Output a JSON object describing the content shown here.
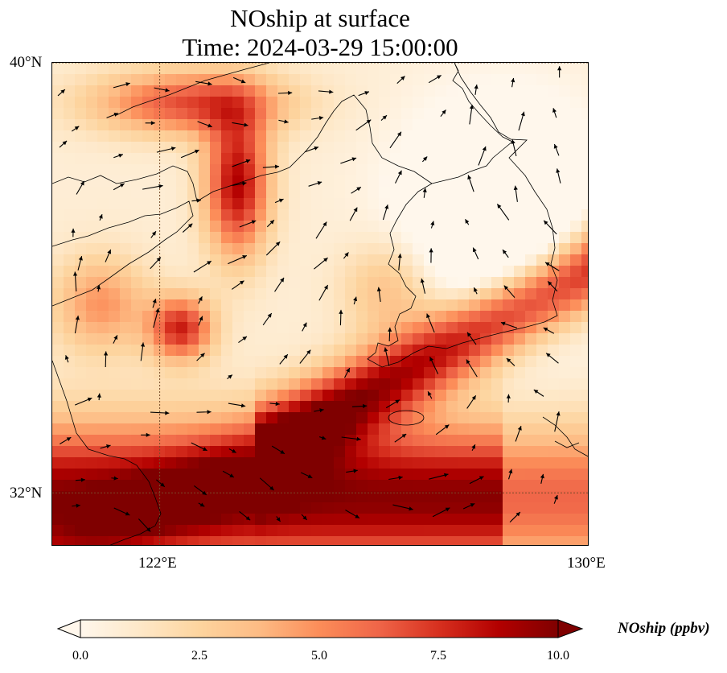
{
  "title": {
    "line1": "NOship at surface",
    "line2": "Time: 2024-03-29 15:00:00"
  },
  "map": {
    "projection": "PlateCarree",
    "extent": {
      "lon_min": 120,
      "lon_max": 130,
      "lat_min": 31,
      "lat_max": 40
    },
    "lat_ticks": [
      {
        "value": 40,
        "label": "40°N"
      },
      {
        "value": 32,
        "label": "32°N"
      }
    ],
    "lon_ticks": [
      {
        "value": 122,
        "label": "122°E"
      },
      {
        "value": 130,
        "label": "130°E"
      }
    ],
    "gridlines": true,
    "field_units": "ppbv",
    "vector_field": "wind arrows",
    "coastlines": true
  },
  "colorbar": {
    "colormap": "OrRd",
    "min": 0.0,
    "max": 10.0,
    "extend": "both",
    "orientation": "horizontal",
    "ticks": [
      "0.0",
      "2.5",
      "5.0",
      "7.5",
      "10.0"
    ],
    "label": "NOship (ppbv)",
    "colors": [
      "#fff7ec",
      "#fee8c8",
      "#fdd49e",
      "#fdbb84",
      "#fc8d59",
      "#ef6548",
      "#d7301f",
      "#b30000",
      "#7f0000"
    ]
  }
}
